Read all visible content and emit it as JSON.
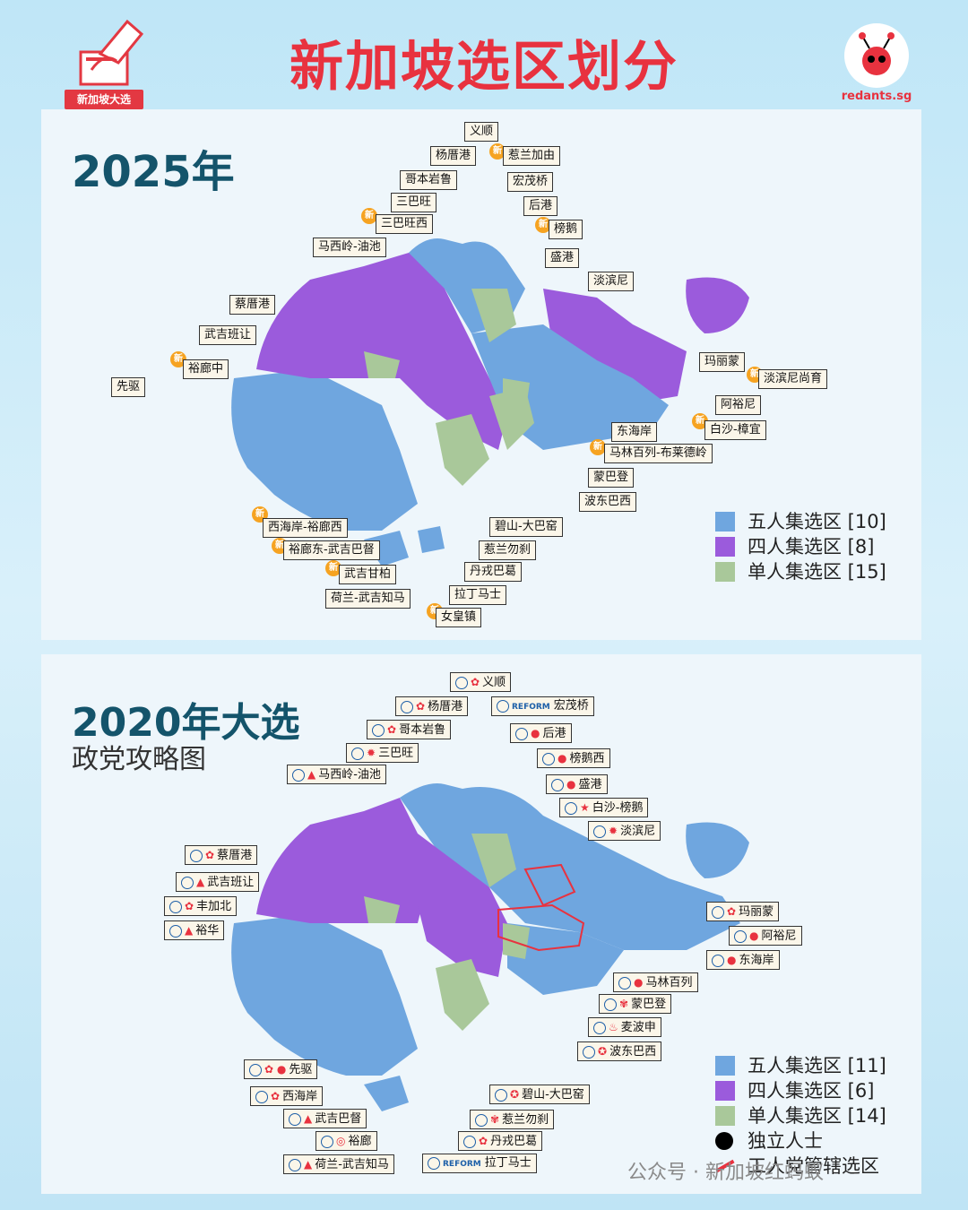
{
  "header": {
    "title": "新加坡选区划分",
    "logo_text": "新加坡大选",
    "brand": "redants.sg"
  },
  "colors": {
    "grc5": "#6fa6df",
    "grc4": "#9b5bdc",
    "smc": "#a9c89a",
    "accent": "#e8323f"
  },
  "p2025": {
    "year": "2025年",
    "new_badge": "新",
    "legend": [
      {
        "text": "五人集选区 [10]",
        "color": "#6fa6df"
      },
      {
        "text": "四人集选区 [8]",
        "color": "#9b5bdc"
      },
      {
        "text": "单人集选区 [15]",
        "color": "#a9c89a"
      }
    ],
    "labels": [
      "义顺",
      "杨厝港",
      "惹兰加由",
      "哥本岩鲁",
      "宏茂桥",
      "三巴旺",
      "后港",
      "三巴旺西",
      "榜鹅",
      "马西岭-油池",
      "盛港",
      "淡滨尼",
      "蔡厝港",
      "武吉班让",
      "玛丽蒙",
      "裕廊中",
      "淡滨尼尚育",
      "先驱",
      "阿裕尼",
      "白沙-樟宜",
      "东海岸",
      "马林百列-布莱德岭",
      "蒙巴登",
      "波东巴西",
      "碧山-大巴窑",
      "西海岸-裕廊西",
      "裕廊东-武吉巴督",
      "惹兰勿刹",
      "武吉甘柏",
      "丹戎巴葛",
      "荷兰-武吉知马",
      "拉丁马士",
      "女皇镇"
    ]
  },
  "p2020": {
    "year": "2020年大选",
    "subtitle": "政党攻略图",
    "legend": [
      {
        "text": "五人集选区 [11]",
        "color": "#6fa6df"
      },
      {
        "text": "四人集选区 [6]",
        "color": "#9b5bdc"
      },
      {
        "text": "单人集选区 [14]",
        "color": "#a9c89a"
      },
      {
        "text": "独立人士",
        "color": "#000000"
      },
      {
        "text": "工人党管辖选区",
        "color": "#e8323f"
      }
    ],
    "reform_text": "REFORM",
    "labels": [
      "义顺",
      "杨厝港",
      "宏茂桥",
      "哥本岩鲁",
      "后港",
      "三巴旺",
      "榜鹅西",
      "马西岭-油池",
      "盛港",
      "白沙-榜鹅",
      "淡滨尼",
      "蔡厝港",
      "武吉班让",
      "玛丽蒙",
      "丰加北",
      "阿裕尼",
      "裕华",
      "东海岸",
      "马林百列",
      "蒙巴登",
      "麦波申",
      "波东巴西",
      "先驱",
      "西海岸",
      "碧山-大巴窑",
      "武吉巴督",
      "惹兰勿刹",
      "裕廊",
      "丹戎巴葛",
      "荷兰-武吉知马",
      "拉丁马士"
    ]
  },
  "watermark": "公众号 · 新加坡红蚂蚁"
}
